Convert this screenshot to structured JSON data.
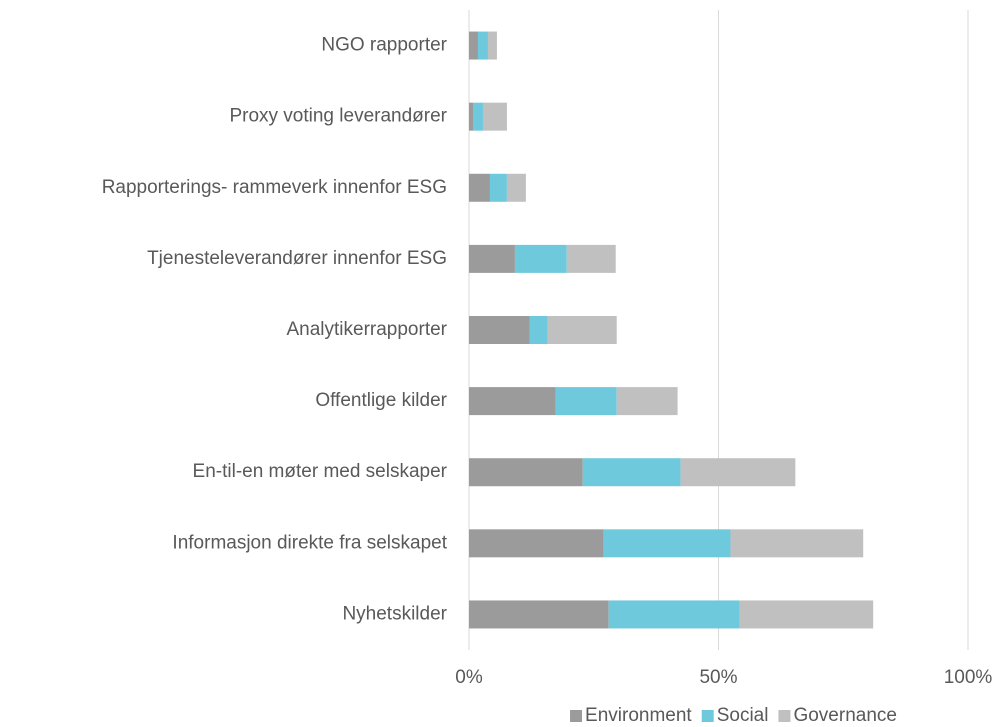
{
  "chart_data": {
    "type": "bar",
    "orientation": "horizontal",
    "stacked": true,
    "categories": [
      "NGO rapporter",
      "Proxy voting leverandører",
      "Rapporterings- rammeverk innenfor ESG",
      "Tjenesteleverandører innenfor ESG",
      "Analytikerrapporter",
      "Offentlige kilder",
      "En-til-en møter med selskaper",
      "Informasjon direkte fra selskapet",
      "Nyhetskilder"
    ],
    "series": [
      {
        "name": "Environment",
        "color": "#9b9b9b",
        "values": [
          1.8,
          0.8,
          4.2,
          9.2,
          12.2,
          17.4,
          22.8,
          27,
          28
        ]
      },
      {
        "name": "Social",
        "color": "#6ec9dd",
        "values": [
          2,
          2,
          3.4,
          10.4,
          3.6,
          12.2,
          19.6,
          25.4,
          26.2
        ]
      },
      {
        "name": "Governance",
        "color": "#c0c0c0",
        "values": [
          1.8,
          4.8,
          3.8,
          9.8,
          13.8,
          12.2,
          23,
          26.6,
          26.8
        ]
      }
    ],
    "xlim": [
      0,
      100
    ],
    "xticks": [
      {
        "value": 0,
        "label": "0%"
      },
      {
        "value": 50,
        "label": "50%"
      },
      {
        "value": 100,
        "label": "100%"
      }
    ],
    "grid": true,
    "legend": "bottom"
  }
}
